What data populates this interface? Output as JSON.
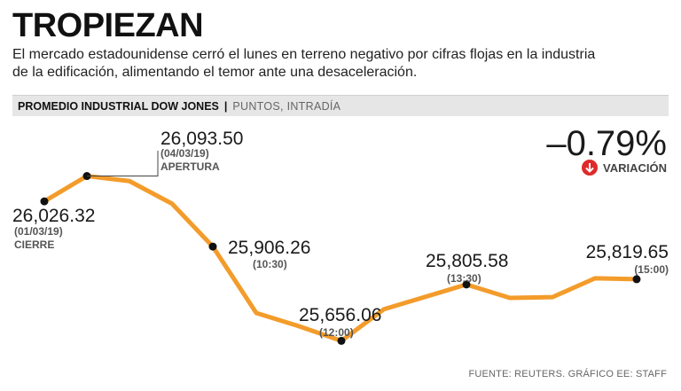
{
  "header": {
    "title": "TROPIEZAN",
    "subtitle_line1": "El mercado estadounidense cerró el lunes en terreno negativo por cifras flojas en la industria",
    "subtitle_line2": "de la edificación, alimentando el temor ante una desaceleración."
  },
  "series_bar": {
    "name": "PROMEDIO INDUSTRIAL DOW JONES",
    "separator": "|",
    "unit": "PUNTOS, INTRADÍA"
  },
  "variation": {
    "value": "–0.79%",
    "label": "VARIACIÓN",
    "icon": "down-arrow-icon",
    "color": "#e02a2a"
  },
  "source": "FUENTE: REUTERS. GRÁFICO EE: STAFF",
  "chart_data": {
    "type": "line",
    "title": "PROMEDIO INDUSTRIAL DOW JONES",
    "ylabel": "PUNTOS, INTRADÍA",
    "xlabel": "",
    "line_color": "#f39c2b",
    "ylim": [
      25610,
      26130
    ],
    "points": [
      {
        "x": 0,
        "y": 26026.32,
        "label": "26,026.32",
        "sub1": "(01/03/19)",
        "sub2": "CIERRE",
        "marker": true
      },
      {
        "x": 1,
        "y": 26093.5,
        "label": "26,093.50",
        "sub1": "(04/03/19)",
        "sub2": "APERTURA",
        "marker": true
      },
      {
        "x": 2,
        "y": 26080,
        "marker": false
      },
      {
        "x": 3,
        "y": 26020,
        "marker": false
      },
      {
        "x": 4,
        "y": 25906.26,
        "label": "25,906.26",
        "sub1": "(10:30)",
        "marker": true
      },
      {
        "x": 5,
        "y": 25730,
        "marker": false
      },
      {
        "x": 6,
        "y": 25695,
        "marker": false
      },
      {
        "x": 7,
        "y": 25656.06,
        "label": "25,656.06",
        "sub1": "(12:00)",
        "marker": true
      },
      {
        "x": 8,
        "y": 25740,
        "marker": false
      },
      {
        "x": 9,
        "y": 25805.58,
        "label": "25,805.58",
        "sub1": "(13:30)",
        "marker": true
      },
      {
        "x": 10,
        "y": 25770,
        "marker": false
      },
      {
        "x": 11,
        "y": 25772,
        "marker": false
      },
      {
        "x": 12,
        "y": 25822,
        "marker": false
      },
      {
        "x": 13,
        "y": 25819.65,
        "label": "25,819.65",
        "sub1": "(15:00)",
        "marker": true
      }
    ]
  }
}
